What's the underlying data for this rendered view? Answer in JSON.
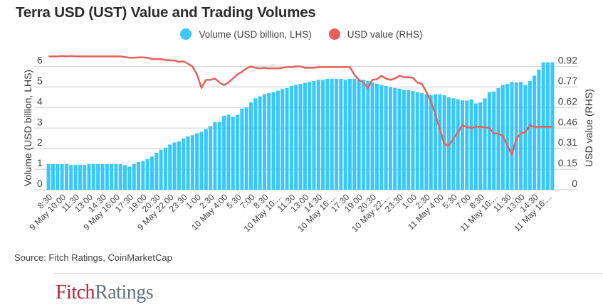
{
  "title": "Terra USD (UST) Value and Trading Volumes",
  "source": "Source: Fitch Ratings, CoinMarketCap",
  "logo": {
    "part1": "Fitch",
    "part2": "Ratings"
  },
  "colors": {
    "volume": "#3ac8fb",
    "usd": "#e8605a",
    "grid": "#dcdcdc",
    "logo_red": "#b5253a",
    "logo_gray": "#68737d"
  },
  "chart_data": {
    "type": "bar+line",
    "title": "Terra USD (UST) Value and Trading Volumes",
    "legend": [
      "Volume (USD billion, LHS)",
      "USD value (RHS)"
    ],
    "legend_position": "top-center",
    "ylabel_left": "Volume (USD billion, LHS)",
    "ylabel_right": "USD value (RHS)",
    "ylim_left": [
      0,
      6
    ],
    "left_ticks": [
      "0",
      "1",
      "2",
      "3",
      "4",
      "5",
      "6"
    ],
    "right_ticks": [
      "0",
      "0.15",
      "0.31",
      "0.46",
      "0.62",
      "0.77",
      "0.92"
    ],
    "ylim_right": [
      0,
      0.92
    ],
    "grid": true,
    "x_tick_labels": [
      "8:30",
      "9 May 10:00",
      "11:30",
      "13:00",
      "14:30",
      "9 May 16:00",
      "17:30",
      "19:00",
      "20:30",
      "9 May 22:00",
      "23:30",
      "1:00",
      "2:30",
      "10 May 4:00",
      "5:30",
      "7:00",
      "8:30",
      "10 May 10:...",
      "11:30",
      "13:00",
      "14:30",
      "10 May 16:...",
      "17:30",
      "19:00",
      "20:30",
      "10 May 22:...",
      "23:30",
      "1:00",
      "2:30",
      "11 May 4:00",
      "5:30",
      "7:00",
      "8:30",
      "11 May 10:...",
      "11:30",
      "13:00",
      "14:30",
      "11 May 16:..."
    ],
    "series": [
      {
        "name": "Volume (USD billion, LHS)",
        "type": "bar",
        "values": [
          1.25,
          1.25,
          1.25,
          1.25,
          1.25,
          1.2,
          1.2,
          1.2,
          1.2,
          1.25,
          1.25,
          1.25,
          1.25,
          1.25,
          1.25,
          1.25,
          1.25,
          1.2,
          1.12,
          1.25,
          1.35,
          1.4,
          1.5,
          1.62,
          1.8,
          1.95,
          2.05,
          2.2,
          2.3,
          2.35,
          2.5,
          2.6,
          2.65,
          2.75,
          2.82,
          2.95,
          3.1,
          3.3,
          3.3,
          3.6,
          3.65,
          3.55,
          3.65,
          3.95,
          4.0,
          4.25,
          4.45,
          4.55,
          4.65,
          4.7,
          4.75,
          4.82,
          4.9,
          4.95,
          5.05,
          5.1,
          5.15,
          5.2,
          5.25,
          5.3,
          5.35,
          5.35,
          5.4,
          5.4,
          5.4,
          5.4,
          5.35,
          5.4,
          5.4,
          5.35,
          5.35,
          5.3,
          5.22,
          5.15,
          5.1,
          5.05,
          5.0,
          4.95,
          4.92,
          4.85,
          4.85,
          4.8,
          4.75,
          4.7,
          4.65,
          4.6,
          4.65,
          4.65,
          4.6,
          4.5,
          4.45,
          4.4,
          4.35,
          4.35,
          4.4,
          4.2,
          4.25,
          4.45,
          4.75,
          4.78,
          4.95,
          5.1,
          5.15,
          5.25,
          5.22,
          5.25,
          5.1,
          5.3,
          5.55,
          5.85,
          6.2,
          6.2,
          6.2
        ]
      },
      {
        "name": "USD value (RHS)",
        "type": "line",
        "values": [
          0.995,
          0.995,
          0.995,
          0.998,
          0.995,
          0.998,
          0.995,
          0.995,
          0.995,
          0.995,
          0.995,
          0.995,
          0.995,
          0.995,
          0.995,
          0.995,
          0.995,
          0.99,
          0.985,
          0.985,
          0.988,
          0.988,
          0.985,
          0.975,
          0.975,
          0.975,
          0.968,
          0.965,
          0.965,
          0.955,
          0.958,
          0.94,
          0.92,
          0.86,
          0.76,
          0.82,
          0.82,
          0.83,
          0.8,
          0.78,
          0.8,
          0.83,
          0.86,
          0.88,
          0.905,
          0.92,
          0.91,
          0.905,
          0.91,
          0.905,
          0.905,
          0.905,
          0.91,
          0.915,
          0.915,
          0.92,
          0.92,
          0.91,
          0.91,
          0.91,
          0.915,
          0.915,
          0.915,
          0.915,
          0.915,
          0.915,
          0.915,
          0.915,
          0.86,
          0.82,
          0.8,
          0.76,
          0.82,
          0.825,
          0.85,
          0.83,
          0.82,
          0.83,
          0.85,
          0.84,
          0.84,
          0.835,
          0.8,
          0.79,
          0.73,
          0.66,
          0.56,
          0.45,
          0.34,
          0.33,
          0.38,
          0.43,
          0.48,
          0.47,
          0.46,
          0.47,
          0.47,
          0.465,
          0.46,
          0.42,
          0.42,
          0.4,
          0.33,
          0.26,
          0.38,
          0.42,
          0.43,
          0.48,
          0.47,
          0.47,
          0.47,
          0.47,
          0.47
        ]
      }
    ]
  }
}
